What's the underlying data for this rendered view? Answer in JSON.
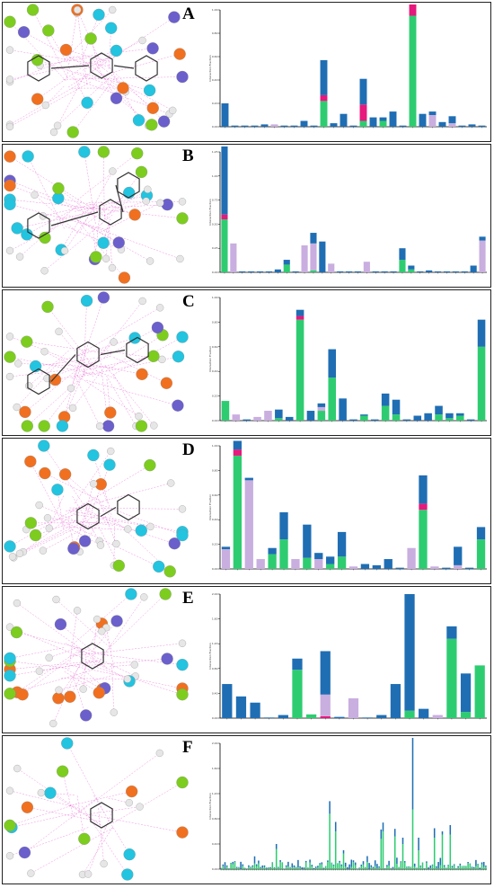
{
  "colors": {
    "blue": "#1f6eb4",
    "green": "#2ecc71",
    "pink": "#e6197d",
    "lilac": "#c9aee0",
    "node_green": "#7ccd1e",
    "node_orange": "#f07020",
    "node_cyan": "#22c4e0",
    "node_purple": "#6b5fcc",
    "node_grey": "#e6e6e6",
    "edge": "#e65fd0"
  },
  "panels": [
    {
      "letter": "A",
      "ylabel": "Interaction Fraction",
      "ylim": [
        0,
        1.0
      ]
    },
    {
      "letter": "B",
      "ylabel": "Interaction Fraction",
      "ylim": [
        0,
        1.25
      ]
    },
    {
      "letter": "C",
      "ylabel": "Interaction Fraction",
      "ylim": [
        0,
        1.0
      ]
    },
    {
      "letter": "D",
      "ylabel": "Interaction Fraction",
      "ylim": [
        0,
        1.0
      ]
    },
    {
      "letter": "E",
      "ylabel": "Interaction Fraction",
      "ylim": [
        0,
        2.0
      ]
    },
    {
      "letter": "F",
      "ylabel": "Interaction Fraction",
      "ylim": [
        0,
        2.0
      ]
    }
  ],
  "chart_data": [
    {
      "type": "bar",
      "stacked": true,
      "series_colors": [
        "#2ecc71",
        "#e6197d",
        "#c9aee0",
        "#1f6eb4"
      ],
      "stacks": [
        [
          0,
          0,
          0,
          0.2
        ],
        [
          0,
          0,
          0,
          0.01
        ],
        [
          0,
          0,
          0,
          0.01
        ],
        [
          0,
          0,
          0,
          0.01
        ],
        [
          0,
          0,
          0,
          0.02
        ],
        [
          0,
          0,
          0.02,
          0
        ],
        [
          0,
          0,
          0,
          0.01
        ],
        [
          0,
          0,
          0,
          0.01
        ],
        [
          0,
          0,
          0,
          0.05
        ],
        [
          0,
          0,
          0,
          0.01
        ],
        [
          0.22,
          0.05,
          0,
          0.3
        ],
        [
          0,
          0,
          0,
          0.03
        ],
        [
          0,
          0,
          0,
          0.11
        ],
        [
          0,
          0,
          0,
          0.01
        ],
        [
          0.05,
          0.14,
          0,
          0.22
        ],
        [
          0,
          0,
          0,
          0.08
        ],
        [
          0.05,
          0,
          0,
          0.03
        ],
        [
          0,
          0,
          0,
          0.13
        ],
        [
          0,
          0,
          0,
          0.01
        ],
        [
          0.95,
          0.22,
          0,
          0.19
        ],
        [
          0,
          0,
          0,
          0.11
        ],
        [
          0,
          0,
          0.1,
          0.03
        ],
        [
          0,
          0,
          0,
          0.04
        ],
        [
          0,
          0,
          0.03,
          0.06
        ],
        [
          0,
          0,
          0,
          0.01
        ],
        [
          0,
          0,
          0,
          0.02
        ],
        [
          0,
          0,
          0,
          0.01
        ]
      ]
    },
    {
      "type": "bar",
      "stacked": true,
      "series_colors": [
        "#2ecc71",
        "#e6197d",
        "#c9aee0",
        "#1f6eb4"
      ],
      "stacks": [
        [
          0.55,
          0.05,
          0,
          0.72
        ],
        [
          0,
          0,
          0.3,
          0
        ],
        [
          0,
          0,
          0,
          0.01
        ],
        [
          0,
          0,
          0,
          0.01
        ],
        [
          0,
          0,
          0,
          0.01
        ],
        [
          0,
          0,
          0,
          0.01
        ],
        [
          0,
          0,
          0,
          0.03
        ],
        [
          0.08,
          0,
          0,
          0.05
        ],
        [
          0,
          0,
          0,
          0.01
        ],
        [
          0,
          0,
          0.28,
          0
        ],
        [
          0.02,
          0,
          0.28,
          0.11
        ],
        [
          0,
          0,
          0,
          0.32
        ],
        [
          0,
          0,
          0.09,
          0
        ],
        [
          0,
          0,
          0,
          0.01
        ],
        [
          0,
          0,
          0,
          0.01
        ],
        [
          0,
          0,
          0,
          0.01
        ],
        [
          0,
          0,
          0.11,
          0
        ],
        [
          0,
          0,
          0,
          0.01
        ],
        [
          0,
          0,
          0,
          0.01
        ],
        [
          0,
          0,
          0,
          0.01
        ],
        [
          0.13,
          0,
          0,
          0.12
        ],
        [
          0.03,
          0,
          0,
          0.04
        ],
        [
          0,
          0,
          0,
          0.01
        ],
        [
          0,
          0,
          0,
          0.02
        ],
        [
          0,
          0,
          0,
          0.01
        ],
        [
          0,
          0,
          0,
          0.01
        ],
        [
          0,
          0,
          0,
          0.01
        ],
        [
          0,
          0,
          0,
          0.01
        ],
        [
          0,
          0,
          0,
          0.07
        ],
        [
          0,
          0,
          0.33,
          0.04
        ]
      ]
    },
    {
      "type": "bar",
      "stacked": true,
      "series_colors": [
        "#2ecc71",
        "#e6197d",
        "#c9aee0",
        "#1f6eb4"
      ],
      "stacks": [
        [
          0.16,
          0,
          0,
          0
        ],
        [
          0,
          0,
          0.05,
          0
        ],
        [
          0,
          0,
          0,
          0.01
        ],
        [
          0,
          0,
          0.03,
          0
        ],
        [
          0,
          0,
          0.08,
          0
        ],
        [
          0.02,
          0,
          0,
          0.07
        ],
        [
          0,
          0,
          0,
          0.03
        ],
        [
          0.82,
          0.03,
          0,
          0.05
        ],
        [
          0,
          0,
          0,
          0.08
        ],
        [
          0.08,
          0,
          0.03,
          0.03
        ],
        [
          0.35,
          0,
          0,
          0.23
        ],
        [
          0,
          0,
          0,
          0.18
        ],
        [
          0,
          0,
          0,
          0.01
        ],
        [
          0.04,
          0,
          0,
          0.01
        ],
        [
          0,
          0,
          0,
          0.01
        ],
        [
          0.12,
          0,
          0,
          0.1
        ],
        [
          0.05,
          0,
          0,
          0.12
        ],
        [
          0,
          0,
          0,
          0.01
        ],
        [
          0,
          0,
          0,
          0.04
        ],
        [
          0,
          0,
          0,
          0.06
        ],
        [
          0.05,
          0,
          0,
          0.07
        ],
        [
          0.02,
          0,
          0,
          0.04
        ],
        [
          0.04,
          0,
          0,
          0.02
        ],
        [
          0,
          0,
          0,
          0.01
        ],
        [
          0.6,
          0,
          0,
          0.22
        ]
      ]
    },
    {
      "type": "bar",
      "stacked": true,
      "series_colors": [
        "#2ecc71",
        "#e6197d",
        "#c9aee0",
        "#1f6eb4"
      ],
      "stacks": [
        [
          0,
          0,
          0.16,
          0.02
        ],
        [
          0.92,
          0.05,
          0,
          0.07
        ],
        [
          0,
          0,
          0.72,
          0.02
        ],
        [
          0,
          0,
          0.08,
          0
        ],
        [
          0.12,
          0,
          0,
          0.05
        ],
        [
          0.24,
          0,
          0,
          0.22
        ],
        [
          0,
          0,
          0.08,
          0
        ],
        [
          0.09,
          0,
          0,
          0.27
        ],
        [
          0,
          0,
          0.08,
          0.05
        ],
        [
          0.04,
          0,
          0,
          0.06
        ],
        [
          0.1,
          0,
          0,
          0.2
        ],
        [
          0,
          0,
          0.02,
          0
        ],
        [
          0,
          0,
          0,
          0.04
        ],
        [
          0,
          0,
          0,
          0.03
        ],
        [
          0,
          0,
          0,
          0.08
        ],
        [
          0,
          0,
          0,
          0.01
        ],
        [
          0,
          0,
          0.17,
          0
        ],
        [
          0.48,
          0.05,
          0,
          0.23
        ],
        [
          0,
          0,
          0.02,
          0
        ],
        [
          0,
          0,
          0,
          0.01
        ],
        [
          0,
          0,
          0.03,
          0.15
        ],
        [
          0,
          0,
          0,
          0.01
        ],
        [
          0.24,
          0,
          0,
          0.1
        ]
      ]
    },
    {
      "type": "bar",
      "stacked": true,
      "series_colors": [
        "#2ecc71",
        "#e6197d",
        "#c9aee0",
        "#1f6eb4"
      ],
      "stacks": [
        [
          0,
          0,
          0,
          0.55
        ],
        [
          0,
          0,
          0,
          0.35
        ],
        [
          0,
          0,
          0,
          0.25
        ],
        [
          0,
          0,
          0,
          0.01
        ],
        [
          0,
          0,
          0,
          0.05
        ],
        [
          0.78,
          0,
          0,
          0.18
        ],
        [
          0.06,
          0,
          0,
          0
        ],
        [
          0,
          0.03,
          0.35,
          0.7
        ],
        [
          0,
          0,
          0,
          0.02
        ],
        [
          0,
          0,
          0.32,
          0
        ],
        [
          0,
          0,
          0,
          0.01
        ],
        [
          0,
          0,
          0,
          0.05
        ],
        [
          0,
          0,
          0,
          0.55
        ],
        [
          0.12,
          0,
          0,
          1.88
        ],
        [
          0,
          0,
          0,
          0.15
        ],
        [
          0,
          0,
          0.05,
          0
        ],
        [
          1.28,
          0,
          0,
          0.2
        ],
        [
          0.1,
          0,
          0,
          0.62
        ],
        [
          0.85,
          0,
          0,
          0
        ]
      ]
    },
    {
      "type": "bar",
      "stacked": true,
      "series_colors": [
        "#2ecc71",
        "#1f6eb4"
      ],
      "stacks": []
    }
  ]
}
